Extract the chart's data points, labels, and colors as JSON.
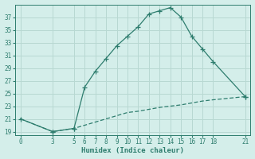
{
  "xlabel": "Humidex (Indice chaleur)",
  "bg_color": "#d4eeea",
  "line_color": "#2e7d6e",
  "grid_color": "#b8d8d2",
  "x_upper": [
    0,
    3,
    5,
    6,
    7,
    8,
    9,
    10,
    11,
    12,
    13,
    14,
    15,
    16,
    17,
    18,
    21
  ],
  "y_upper": [
    21,
    19,
    19.5,
    26,
    28.5,
    30.5,
    32.5,
    34,
    35.5,
    37.5,
    38,
    38.5,
    37,
    34,
    32,
    30,
    24.5
  ],
  "x_lower": [
    0,
    3,
    5,
    6,
    7,
    8,
    9,
    10,
    11,
    12,
    13,
    14,
    15,
    16,
    17,
    18,
    21
  ],
  "y_lower": [
    21,
    19,
    19.5,
    20,
    20.5,
    21,
    21.5,
    22,
    22.2,
    22.5,
    22.8,
    23,
    23.2,
    23.5,
    23.8,
    24,
    24.5
  ],
  "xlim": [
    -0.5,
    21.5
  ],
  "ylim": [
    18.5,
    39
  ],
  "xticks": [
    0,
    3,
    5,
    6,
    7,
    8,
    9,
    10,
    11,
    12,
    13,
    14,
    15,
    16,
    17,
    18,
    21
  ],
  "yticks": [
    19,
    21,
    23,
    25,
    27,
    29,
    31,
    33,
    35,
    37
  ],
  "axis_fontsize": 6.5,
  "tick_fontsize": 5.5,
  "marker_upper": [
    0,
    1,
    2,
    3,
    4,
    5,
    6,
    7,
    8,
    9,
    10,
    11,
    12,
    13,
    14,
    15,
    16
  ],
  "marker_lower": [
    1,
    2,
    16
  ]
}
